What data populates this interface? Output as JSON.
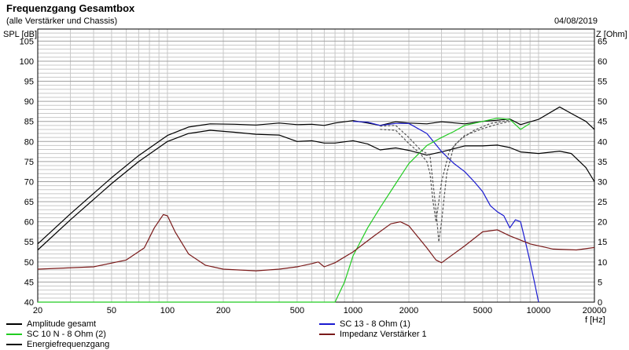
{
  "title": "Frequenzgang Gesamtbox",
  "subtitle": "(alle Verstärker und Chassis)",
  "date": "04/08/2019",
  "y_left_unit": "SPL [dB]",
  "y_right_unit": "Z [Ohm]",
  "x_unit": "f [Hz]",
  "colors": {
    "amplitude": "#000000",
    "sc13": "#1a1ad0",
    "sc10": "#22cc22",
    "impedanz": "#7a1a1a",
    "energie": "#555555",
    "grid": "#c8c8c8",
    "grid_major": "#a0a0a0"
  },
  "legend": [
    {
      "label": "Amplitude gesamt",
      "color": "#000000",
      "dashed": false
    },
    {
      "label": "SC 13 - 8 Ohm (1)",
      "color": "#1a1ad0",
      "dashed": false
    },
    {
      "label": "SC 10 N - 8 Ohm (2)",
      "color": "#22cc22",
      "dashed": false
    },
    {
      "label": "Impedanz Verstärker 1",
      "color": "#7a1a1a",
      "dashed": false
    },
    {
      "label": "Energiefrequenzgang",
      "color": "#000000",
      "dashed": false
    }
  ],
  "chart_data": {
    "type": "line",
    "xscale": "log",
    "xlim": [
      20,
      20000
    ],
    "ylim": [
      40,
      108
    ],
    "y2lim": [
      0,
      68
    ],
    "xticks": [
      20,
      50,
      100,
      200,
      500,
      1000,
      2000,
      5000,
      10000,
      20000
    ],
    "xtick_labels": [
      "20",
      "50",
      "100",
      "200",
      "500",
      "1000",
      "2000",
      "5000",
      "10000",
      "20000"
    ],
    "yticks": [
      40,
      45,
      50,
      55,
      60,
      65,
      70,
      75,
      80,
      85,
      90,
      95,
      100,
      105
    ],
    "y2ticks": [
      0,
      5,
      10,
      15,
      20,
      25,
      30,
      35,
      40,
      45,
      50,
      55,
      60,
      65
    ],
    "grid": true,
    "series": [
      {
        "name": "Amplitude gesamt",
        "axis": "left",
        "key": "amplitude",
        "x": [
          20,
          30,
          50,
          70,
          100,
          130,
          170,
          230,
          300,
          400,
          500,
          600,
          700,
          800,
          1000,
          1200,
          1400,
          1700,
          2000,
          2500,
          3000,
          4000,
          5000,
          6000,
          7000,
          8000,
          10000,
          13000,
          15000,
          18000,
          20000
        ],
        "y": [
          54.5,
          62,
          71,
          76.5,
          81.5,
          83.6,
          84.4,
          84.3,
          84.1,
          84.6,
          84.2,
          84.3,
          84.0,
          84.6,
          85.2,
          84.6,
          84.0,
          84.9,
          84.6,
          84.4,
          84.9,
          84.4,
          85.0,
          85.3,
          85.6,
          84.2,
          85.5,
          88.6,
          87.0,
          85.0,
          83.0
        ]
      },
      {
        "name": "Energiefrequenzgang",
        "axis": "left",
        "key": "amplitude",
        "x": [
          20,
          30,
          50,
          70,
          100,
          130,
          170,
          230,
          300,
          400,
          500,
          600,
          700,
          800,
          1000,
          1200,
          1400,
          1700,
          2000,
          2500,
          3000,
          4000,
          5000,
          6000,
          7000,
          8000,
          10000,
          13000,
          15000,
          18000,
          20000
        ],
        "y": [
          53,
          60.5,
          69.5,
          75,
          80,
          82,
          82.8,
          82.3,
          81.8,
          81.6,
          80.0,
          80.2,
          79.6,
          79.6,
          80.2,
          79.4,
          77.9,
          78.4,
          77.8,
          76.6,
          77.4,
          78.9,
          78.9,
          79.1,
          78.5,
          77.4,
          77.0,
          77.6,
          77.0,
          73.5,
          70.0
        ]
      },
      {
        "name": "SC 13 - 8 Ohm (1)",
        "axis": "left",
        "key": "sc13",
        "x": [
          1000,
          1200,
          1400,
          1700,
          2000,
          2500,
          3000,
          3500,
          4000,
          4500,
          5000,
          5500,
          6000,
          6500,
          7000,
          7500,
          8000,
          8500,
          9000,
          9500,
          10000
        ],
        "y": [
          85.0,
          84.8,
          84.0,
          84.5,
          84.5,
          82.0,
          77.5,
          74.5,
          72.5,
          70.0,
          67.5,
          64.0,
          62.5,
          61.5,
          58.5,
          60.5,
          60.0,
          55.0,
          50.0,
          45.0,
          40.0
        ]
      },
      {
        "name": "SC 10 N - 8 Ohm (2)",
        "axis": "left",
        "key": "sc10",
        "x": [
          20,
          800,
          900,
          1000,
          1200,
          1400,
          1700,
          2000,
          2500,
          3000,
          3500,
          4000,
          5000,
          6000,
          7000,
          8000,
          9000
        ],
        "y": [
          40,
          40,
          45,
          51.5,
          58.5,
          63.5,
          69.5,
          74.5,
          79.0,
          81.0,
          82.5,
          84.0,
          85.0,
          85.8,
          85.5,
          83.0,
          84.5
        ]
      },
      {
        "name": "Impedanz Verstärker 1",
        "axis": "right",
        "key": "impedanz",
        "x": [
          20,
          40,
          60,
          75,
          85,
          95,
          100,
          110,
          130,
          160,
          200,
          300,
          400,
          500,
          600,
          650,
          700,
          800,
          1000,
          1300,
          1600,
          1800,
          2000,
          2500,
          2800,
          3000,
          4000,
          5000,
          6000,
          7000,
          9000,
          12000,
          16000,
          20000
        ],
        "y": [
          8.2,
          8.8,
          10.5,
          13.5,
          18.5,
          21.8,
          21.5,
          17.5,
          12.0,
          9.2,
          8.2,
          7.8,
          8.2,
          8.8,
          9.6,
          10.0,
          8.8,
          9.8,
          12.5,
          16.5,
          19.5,
          20.0,
          19.0,
          13.5,
          10.5,
          9.8,
          14.0,
          17.5,
          18.0,
          16.5,
          14.5,
          13.2,
          13.0,
          13.6
        ]
      },
      {
        "name": "dashed-component-1",
        "axis": "left",
        "key": "energie",
        "dashed": true,
        "x": [
          1400,
          1700,
          2000,
          2300,
          2600,
          2800,
          2900,
          3000,
          3200,
          3500,
          4000,
          5000,
          6000,
          7000
        ],
        "y": [
          83.8,
          84.0,
          81.0,
          78.0,
          76.5,
          63.0,
          55.0,
          60.0,
          72.0,
          79.0,
          81.5,
          83.2,
          84.3,
          85.0
        ]
      },
      {
        "name": "dashed-component-2",
        "axis": "left",
        "key": "energie",
        "dashed": true,
        "x": [
          1400,
          1700,
          2000,
          2300,
          2500,
          2600,
          2700,
          2800,
          3000,
          3300,
          3800,
          4500,
          5500,
          7000
        ],
        "y": [
          83.0,
          82.8,
          79.5,
          77.0,
          75.0,
          72.0,
          65.0,
          60.0,
          70.0,
          77.5,
          80.5,
          82.8,
          84.5,
          85.3
        ]
      }
    ]
  }
}
